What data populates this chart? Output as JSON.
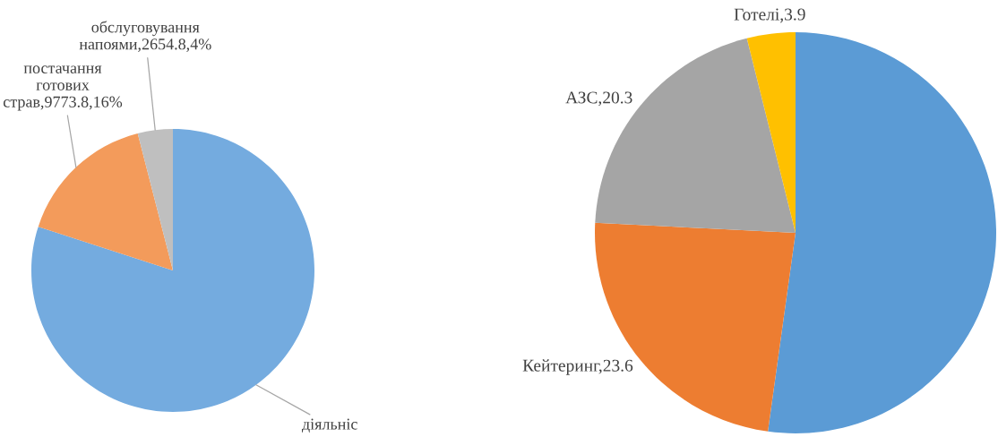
{
  "chart_data": [
    {
      "type": "pie",
      "categories": [
        "діяльніс",
        "постачання готових страв",
        "обслуговування напоями"
      ],
      "values": [
        80,
        16,
        4
      ],
      "colors": [
        "#74abdf",
        "#f39b5b",
        "#bfbfbf"
      ],
      "value_labels": [
        null,
        "9773.8,16%",
        "2654.8,4%"
      ]
    },
    {
      "type": "pie",
      "categories": [
        null,
        "Кейтеринг",
        "АЗС",
        "Готелі"
      ],
      "values": [
        52.2,
        23.6,
        20.3,
        3.9
      ],
      "colors": [
        "#5b9bd5",
        "#ed7d31",
        "#a5a5a5",
        "#ffc000"
      ],
      "value_labels": [
        null,
        "23.6",
        "20.3",
        "3.9"
      ]
    }
  ]
}
